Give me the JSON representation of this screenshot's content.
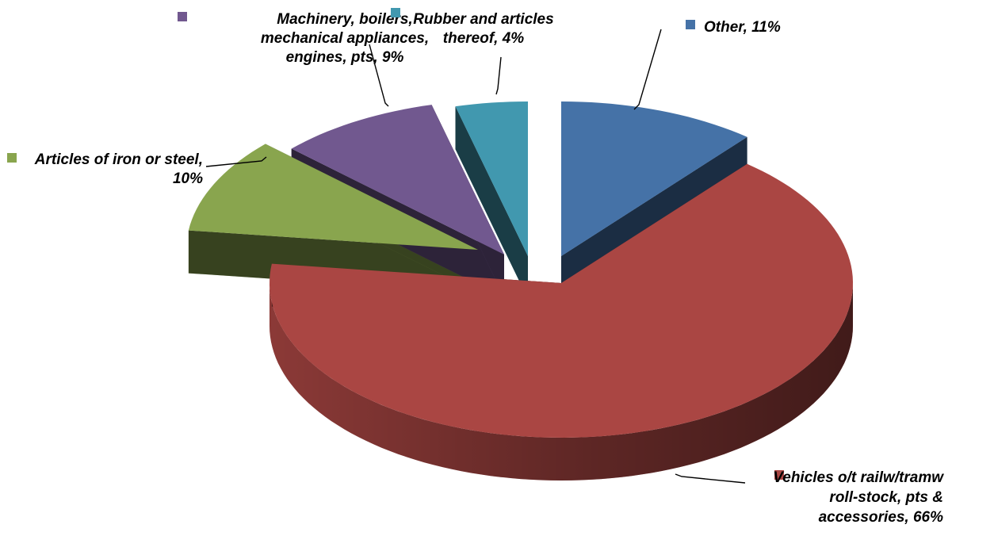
{
  "chart_data": {
    "type": "pie",
    "style": "3d-exploded",
    "title": "",
    "slices": [
      {
        "label": "Other",
        "value": 11,
        "color": "#4572A7",
        "label_lines": [
          "Other, 11%"
        ]
      },
      {
        "label": "Vehicles o/t railw/tramw roll-stock, pts & accessories",
        "value": 66,
        "color": "#AA4643",
        "label_lines": [
          "Vehicles o/t railw/tramw",
          "roll-stock, pts &",
          "accessories, 66%"
        ]
      },
      {
        "label": "Articles of iron or steel",
        "value": 10,
        "color": "#89A54E",
        "label_lines": [
          "Articles of iron or steel,",
          "10%"
        ]
      },
      {
        "label": "Machinery, boilers, mechanical appliances, engines, pts",
        "value": 9,
        "color": "#71588F",
        "label_lines": [
          "Machinery, boilers,",
          "mechanical appliances,",
          "engines, pts, 9%"
        ]
      },
      {
        "label": "Rubber and articles thereof",
        "value": 4,
        "color": "#4198AF",
        "label_lines": [
          "Rubber and articles",
          "thereof, 4%"
        ]
      }
    ]
  }
}
